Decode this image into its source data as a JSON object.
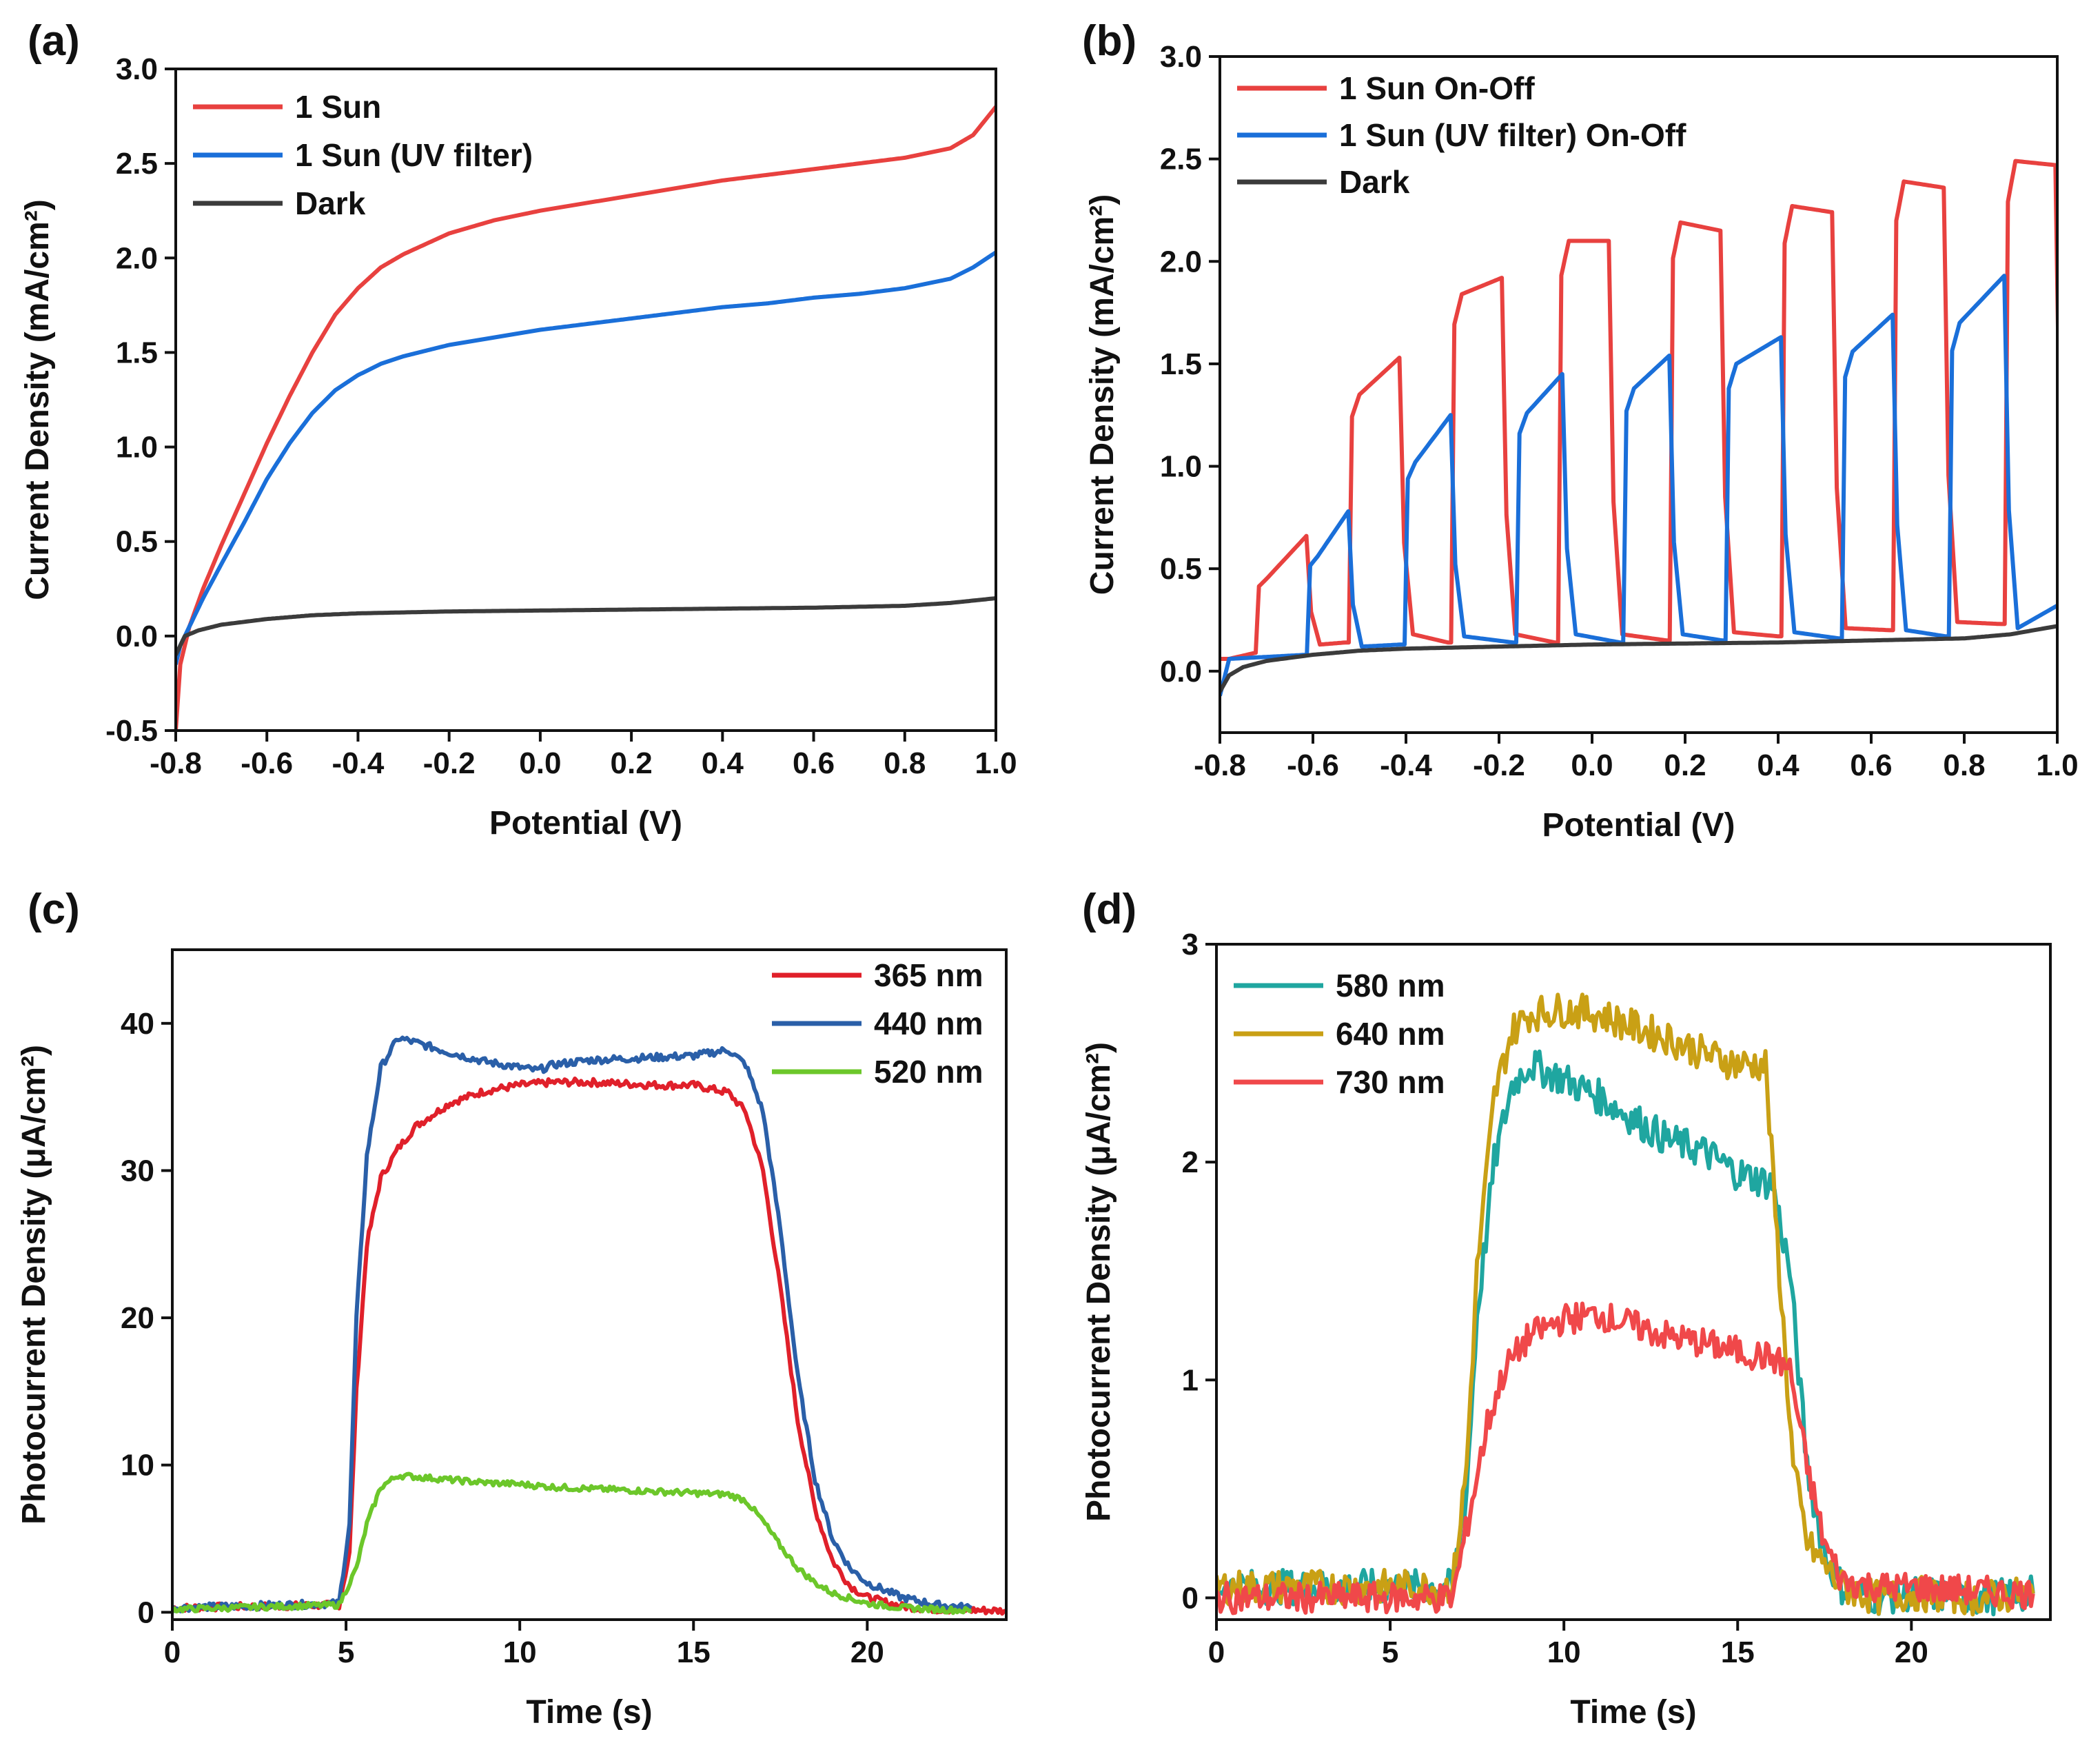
{
  "chart_data": [
    {
      "panel": "(a)",
      "type": "line",
      "xlabel": "Potential (V)",
      "ylabel": "Current Density (mA/cm²)",
      "xlim": [
        -0.8,
        1.0
      ],
      "ylim": [
        -0.5,
        3.0
      ],
      "xticks": [
        -0.8,
        -0.6,
        -0.4,
        -0.2,
        0.0,
        0.2,
        0.4,
        0.6,
        0.8,
        1.0
      ],
      "xtick_labels": [
        "-0.8",
        "-0.6",
        "-0.4",
        "-0.2",
        "0.0",
        "0.2",
        "0.4",
        "0.6",
        "0.8",
        "1.0"
      ],
      "yticks": [
        -0.5,
        0.0,
        0.5,
        1.0,
        1.5,
        2.0,
        2.5,
        3.0
      ],
      "ytick_labels": [
        "-0.5",
        "0.0",
        "0.5",
        "1.0",
        "1.5",
        "2.0",
        "2.5",
        "3.0"
      ],
      "legend_position": "top-left",
      "series": [
        {
          "name": "1 Sun",
          "color": "#e8413f",
          "x": [
            -0.8,
            -0.79,
            -0.77,
            -0.74,
            -0.7,
            -0.65,
            -0.6,
            -0.55,
            -0.5,
            -0.45,
            -0.4,
            -0.35,
            -0.3,
            -0.2,
            -0.1,
            0.0,
            0.1,
            0.2,
            0.3,
            0.4,
            0.5,
            0.6,
            0.7,
            0.8,
            0.9,
            0.95,
            1.0
          ],
          "y": [
            -0.5,
            -0.15,
            0.05,
            0.25,
            0.48,
            0.75,
            1.02,
            1.27,
            1.5,
            1.7,
            1.84,
            1.95,
            2.02,
            2.13,
            2.2,
            2.25,
            2.29,
            2.33,
            2.37,
            2.41,
            2.44,
            2.47,
            2.5,
            2.53,
            2.58,
            2.65,
            2.8
          ]
        },
        {
          "name": "1 Sun (UV filter)",
          "color": "#1a6fd9",
          "x": [
            -0.8,
            -0.79,
            -0.77,
            -0.74,
            -0.7,
            -0.65,
            -0.6,
            -0.55,
            -0.5,
            -0.45,
            -0.4,
            -0.35,
            -0.3,
            -0.2,
            -0.1,
            0.0,
            0.1,
            0.2,
            0.3,
            0.4,
            0.5,
            0.6,
            0.7,
            0.8,
            0.9,
            0.95,
            1.0
          ],
          "y": [
            -0.15,
            -0.05,
            0.05,
            0.2,
            0.38,
            0.6,
            0.83,
            1.02,
            1.18,
            1.3,
            1.38,
            1.44,
            1.48,
            1.54,
            1.58,
            1.62,
            1.65,
            1.68,
            1.71,
            1.74,
            1.76,
            1.79,
            1.81,
            1.84,
            1.89,
            1.95,
            2.03
          ]
        },
        {
          "name": "Dark",
          "color": "#3b3b3b",
          "x": [
            -0.8,
            -0.78,
            -0.75,
            -0.7,
            -0.6,
            -0.5,
            -0.4,
            -0.2,
            0.0,
            0.2,
            0.4,
            0.6,
            0.8,
            0.9,
            1.0
          ],
          "y": [
            -0.1,
            0.0,
            0.03,
            0.06,
            0.09,
            0.11,
            0.12,
            0.13,
            0.135,
            0.14,
            0.145,
            0.15,
            0.16,
            0.175,
            0.2
          ]
        }
      ]
    },
    {
      "panel": "(b)",
      "type": "line",
      "xlabel": "Potential (V)",
      "ylabel": "Current Density (mA/cm²)",
      "xlim": [
        -0.8,
        1.0
      ],
      "ylim": [
        -0.3,
        3.0
      ],
      "xticks": [
        -0.8,
        -0.6,
        -0.4,
        -0.2,
        0.0,
        0.2,
        0.4,
        0.6,
        0.8,
        1.0
      ],
      "xtick_labels": [
        "-0.8",
        "-0.6",
        "-0.4",
        "-0.2",
        "0.0",
        "0.2",
        "0.4",
        "0.6",
        "0.8",
        "1.0"
      ],
      "yticks": [
        0.0,
        0.5,
        1.0,
        1.5,
        2.0,
        2.5,
        3.0
      ],
      "ytick_labels": [
        "0.0",
        "0.5",
        "1.0",
        "1.5",
        "2.0",
        "2.5",
        "3.0"
      ],
      "legend_position": "top-left",
      "series": [
        {
          "name": "1 Sun On-Off",
          "color": "#e8413f",
          "on_off_cycles": [
            {
              "on": -0.72,
              "off": -0.61,
              "base": 0.09,
              "top_start": 0.45,
              "top_end": 0.66
            },
            {
              "on": -0.52,
              "off": -0.41,
              "base": 0.14,
              "top_start": 1.35,
              "top_end": 1.53
            },
            {
              "on": -0.3,
              "off": -0.19,
              "base": 0.14,
              "top_start": 1.84,
              "top_end": 1.92
            },
            {
              "on": -0.07,
              "off": 0.04,
              "base": 0.14,
              "top_start": 2.1,
              "top_end": 2.1
            },
            {
              "on": 0.17,
              "off": 0.28,
              "base": 0.15,
              "top_start": 2.19,
              "top_end": 2.15
            },
            {
              "on": 0.41,
              "off": 0.52,
              "base": 0.17,
              "top_start": 2.27,
              "top_end": 2.24
            },
            {
              "on": 0.65,
              "off": 0.76,
              "base": 0.2,
              "top_start": 2.39,
              "top_end": 2.36
            },
            {
              "on": 0.89,
              "off": 1.0,
              "base": 0.23,
              "top_start": 2.49,
              "top_end": 2.47
            }
          ]
        },
        {
          "name": "1 Sun (UV filter) On-Off",
          "color": "#1a6fd9",
          "on_off_cycles": [
            {
              "on": -0.61,
              "off": -0.52,
              "base": 0.08,
              "top_start": 0.56,
              "top_end": 0.78
            },
            {
              "on": -0.4,
              "off": -0.3,
              "base": 0.13,
              "top_start": 1.02,
              "top_end": 1.25
            },
            {
              "on": -0.16,
              "off": -0.06,
              "base": 0.14,
              "top_start": 1.26,
              "top_end": 1.45
            },
            {
              "on": 0.07,
              "off": 0.17,
              "base": 0.14,
              "top_start": 1.38,
              "top_end": 1.54
            },
            {
              "on": 0.29,
              "off": 0.41,
              "base": 0.15,
              "top_start": 1.5,
              "top_end": 1.63
            },
            {
              "on": 0.54,
              "off": 0.65,
              "base": 0.16,
              "top_start": 1.56,
              "top_end": 1.74
            },
            {
              "on": 0.77,
              "off": 0.89,
              "base": 0.17,
              "top_start": 1.7,
              "top_end": 1.93
            }
          ]
        },
        {
          "name": "Dark",
          "color": "#3b3b3b",
          "x": [
            -0.8,
            -0.78,
            -0.75,
            -0.7,
            -0.6,
            -0.5,
            -0.4,
            -0.2,
            0.0,
            0.2,
            0.4,
            0.6,
            0.8,
            0.9,
            1.0
          ],
          "y": [
            -0.1,
            -0.02,
            0.02,
            0.05,
            0.08,
            0.1,
            0.11,
            0.12,
            0.13,
            0.135,
            0.14,
            0.15,
            0.16,
            0.18,
            0.22
          ]
        }
      ]
    },
    {
      "panel": "(c)",
      "type": "line",
      "xlabel": "Time (s)",
      "ylabel": "Photocurrent Density (μA/cm²)",
      "xlim": [
        0,
        24
      ],
      "ylim": [
        -0.5,
        45
      ],
      "xticks": [
        0,
        5,
        10,
        15,
        20
      ],
      "xtick_labels": [
        "0",
        "5",
        "10",
        "15",
        "20"
      ],
      "yticks": [
        0,
        10,
        20,
        30,
        40
      ],
      "ytick_labels": [
        "0",
        "10",
        "20",
        "30",
        "40"
      ],
      "legend_position": "top-right",
      "series": [
        {
          "name": "365 nm",
          "color": "#e0202a",
          "x": [
            0,
            4.8,
            5.1,
            5.3,
            5.6,
            6.0,
            6.5,
            7.0,
            8.0,
            9.0,
            10.0,
            11.0,
            12.0,
            13.0,
            14.0,
            15.0,
            16.0,
            16.5,
            17.0,
            17.5,
            18.0,
            18.5,
            19.0,
            19.5,
            20.0,
            21.0,
            22.0,
            24.0
          ],
          "y": [
            0.3,
            0.5,
            4,
            15,
            25,
            29.5,
            31.5,
            33,
            34.6,
            35.4,
            35.8,
            36.0,
            36.0,
            35.9,
            35.8,
            35.8,
            35.3,
            34.0,
            30,
            22,
            13,
            7,
            3.5,
            1.8,
            1.0,
            0.4,
            0.2,
            0.1
          ]
        },
        {
          "name": "440 nm",
          "color": "#2a5fa8",
          "x": [
            0,
            4.8,
            5.1,
            5.3,
            5.6,
            6.0,
            6.5,
            7.0,
            8.0,
            9.0,
            10.0,
            10.5,
            11.0,
            12.0,
            13.0,
            14.0,
            15.0,
            16.0,
            16.5,
            17.0,
            17.5,
            18.0,
            18.5,
            19.0,
            19.5,
            20.0,
            21.0,
            22.0,
            23.0
          ],
          "y": [
            0.3,
            0.6,
            6,
            20,
            31,
            37,
            39.0,
            38.7,
            38.0,
            37.4,
            37.0,
            36.8,
            37.2,
            37.5,
            37.6,
            37.7,
            37.8,
            38.2,
            37.2,
            34,
            26,
            16,
            9,
            5,
            3,
            2,
            1.0,
            0.5,
            0.3
          ]
        },
        {
          "name": "520 nm",
          "color": "#6cc72a",
          "x": [
            0,
            4.8,
            5.3,
            5.6,
            6.0,
            6.5,
            7.0,
            8.0,
            9.0,
            10.0,
            11.0,
            12.0,
            13.0,
            14.0,
            15.0,
            16.0,
            16.5,
            17.0,
            17.5,
            18.0,
            18.5,
            19.0,
            20.0,
            21.0,
            22.0,
            23.0
          ],
          "y": [
            0.2,
            0.5,
            3,
            6,
            8.5,
            9.3,
            9.2,
            9.0,
            8.8,
            8.7,
            8.5,
            8.4,
            8.3,
            8.2,
            8.1,
            8.0,
            7.6,
            6.2,
            4.5,
            3.0,
            2.0,
            1.3,
            0.6,
            0.3,
            0.2,
            0.1
          ]
        }
      ]
    },
    {
      "panel": "(d)",
      "type": "line",
      "xlabel": "Time (s)",
      "ylabel": "Photocurrent Density (μA/cm²)",
      "xlim": [
        0,
        24
      ],
      "ylim": [
        -0.1,
        3.0
      ],
      "xticks": [
        0,
        5,
        10,
        15,
        20
      ],
      "xtick_labels": [
        "0",
        "5",
        "10",
        "15",
        "20"
      ],
      "yticks": [
        0,
        1,
        2,
        3
      ],
      "ytick_labels": [
        "0",
        "1",
        "2",
        "3"
      ],
      "legend_position": "top-left",
      "series": [
        {
          "name": "580 nm",
          "color": "#1fa6a0",
          "x": [
            0,
            6.8,
            7.2,
            7.5,
            8.0,
            8.5,
            9.0,
            10.0,
            11.0,
            12.0,
            13.0,
            14.0,
            15.0,
            16.0,
            16.5,
            17.0,
            17.5,
            18.0,
            19.0,
            20.0,
            22.0,
            23.5
          ],
          "y": [
            0.05,
            0.05,
            0.5,
            1.3,
            2.0,
            2.35,
            2.45,
            2.38,
            2.3,
            2.2,
            2.1,
            2.05,
            1.95,
            1.9,
            1.5,
            0.6,
            0.2,
            0.05,
            0.0,
            0.02,
            0.0,
            0.02
          ]
        },
        {
          "name": "640 nm",
          "color": "#c9a015",
          "x": [
            0,
            6.8,
            7.2,
            7.5,
            8.0,
            8.5,
            9.0,
            10.0,
            11.0,
            12.0,
            13.0,
            14.0,
            15.0,
            15.8,
            16.2,
            16.6,
            17.0,
            17.5,
            18.0,
            19.0,
            20.0,
            22.0,
            23.5
          ],
          "y": [
            0.05,
            0.05,
            0.6,
            1.5,
            2.3,
            2.6,
            2.68,
            2.7,
            2.68,
            2.62,
            2.57,
            2.5,
            2.45,
            2.45,
            1.5,
            0.6,
            0.25,
            0.15,
            0.05,
            0.0,
            0.02,
            0.0,
            0.02
          ]
        },
        {
          "name": "730 nm",
          "color": "#f0484a",
          "x": [
            0,
            6.8,
            7.3,
            7.8,
            8.3,
            9.0,
            10.0,
            11.0,
            12.0,
            13.0,
            14.0,
            15.0,
            16.0,
            16.5,
            17.0,
            17.5,
            18.0,
            19.0,
            20.0,
            22.0,
            23.5
          ],
          "y": [
            0.0,
            0.0,
            0.4,
            0.8,
            1.05,
            1.2,
            1.28,
            1.3,
            1.25,
            1.2,
            1.17,
            1.13,
            1.1,
            1.05,
            0.6,
            0.25,
            0.08,
            0.05,
            0.05,
            0.03,
            0.02
          ]
        }
      ]
    }
  ]
}
